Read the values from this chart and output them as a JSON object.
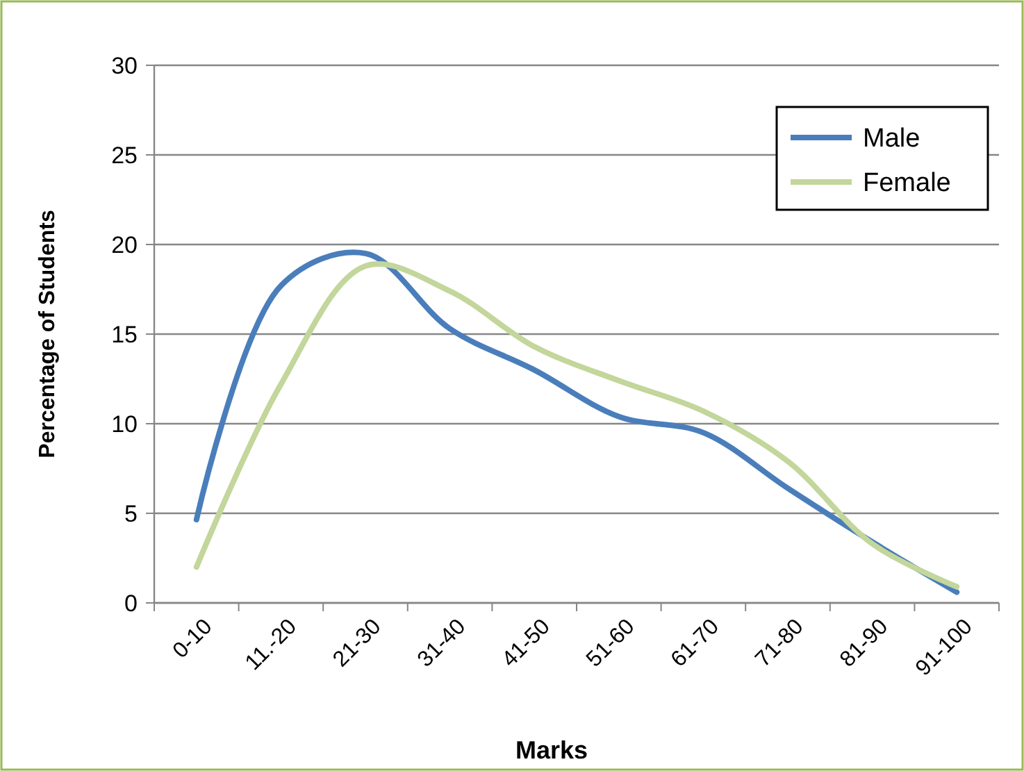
{
  "chart_data": {
    "type": "line",
    "xlabel": "Marks",
    "ylabel": "Percentage of Students",
    "categories": [
      "0-10",
      "11.-20",
      "21-30",
      "31-40",
      "41-50",
      "51-60",
      "61-70",
      "71-80",
      "81-90",
      "91-100"
    ],
    "series": [
      {
        "name": "Male",
        "color": "#4a7ebb",
        "values": [
          4.65,
          17.7,
          19.5,
          15.3,
          13.0,
          10.4,
          9.5,
          6.4,
          3.4,
          0.6
        ]
      },
      {
        "name": "Female",
        "color": "#c3d69b",
        "values": [
          2.0,
          12.2,
          18.8,
          17.4,
          14.3,
          12.4,
          10.7,
          7.9,
          3.3,
          0.9
        ]
      }
    ],
    "ylim": [
      0,
      30
    ],
    "yticks": [
      0,
      5,
      10,
      15,
      20,
      25,
      30
    ],
    "grid": "y",
    "legend": "top right",
    "marker": "none",
    "line_style": "solid"
  }
}
